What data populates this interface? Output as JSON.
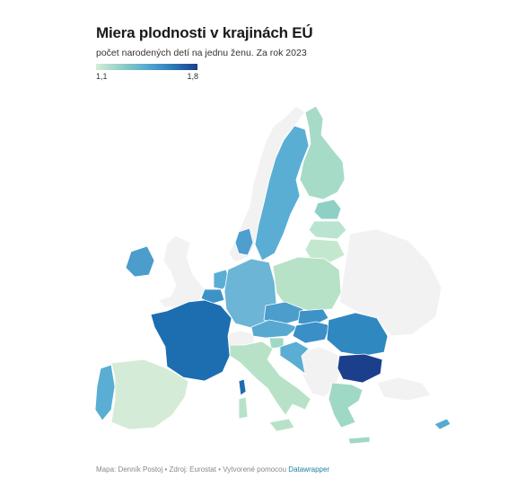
{
  "header": {
    "title": "Miera plodnosti v krajinách EÚ",
    "subtitle": "počet narodených detí na jednu ženu. Za rok 2023"
  },
  "legend": {
    "min_label": "1,1",
    "max_label": "1,8",
    "min_value": 1.1,
    "max_value": 1.8
  },
  "colors": {
    "non_eu": "#f2f2f2",
    "lightest": "#d4ecd7",
    "light_teal": "#9fd9c6",
    "mid_blue": "#57a9d2",
    "blue": "#2f88c0",
    "strong_blue": "#1c6eb0",
    "darkest": "#1c3f8c"
  },
  "footer": {
    "credit": "Mapa: Denník Postoj • Zdroj: Eurostat • Vytvorené pomocou ",
    "link": "Datawrapper"
  }
}
